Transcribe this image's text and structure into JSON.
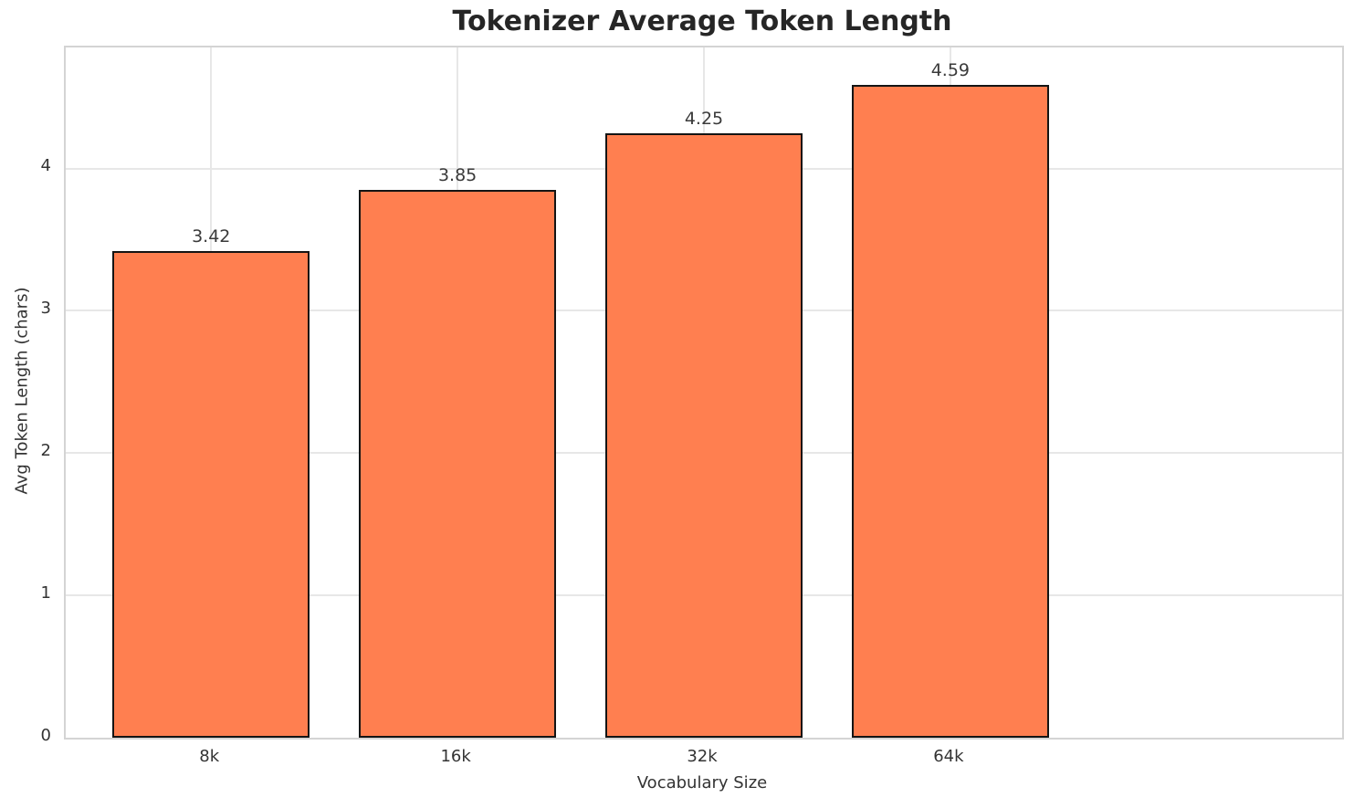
{
  "chart_data": {
    "type": "bar",
    "title": "Tokenizer Average Token Length",
    "xlabel": "Vocabulary Size",
    "ylabel": "Avg Token Length (chars)",
    "categories": [
      "8k",
      "16k",
      "32k",
      "64k"
    ],
    "values": [
      3.42,
      3.85,
      4.25,
      4.59
    ],
    "value_labels": [
      "3.42",
      "3.85",
      "4.25",
      "4.59"
    ],
    "yticks": [
      0,
      1,
      2,
      3,
      4
    ],
    "ylim": [
      0,
      4.85
    ],
    "grid": true,
    "legend": "none",
    "colors": {
      "bar_fill": "#ff7f50",
      "bar_edge": "#141414",
      "grid": "#e7e7e7",
      "spine": "#d4d4d4",
      "title_text": "#262626",
      "tick_text": "#333333"
    }
  }
}
